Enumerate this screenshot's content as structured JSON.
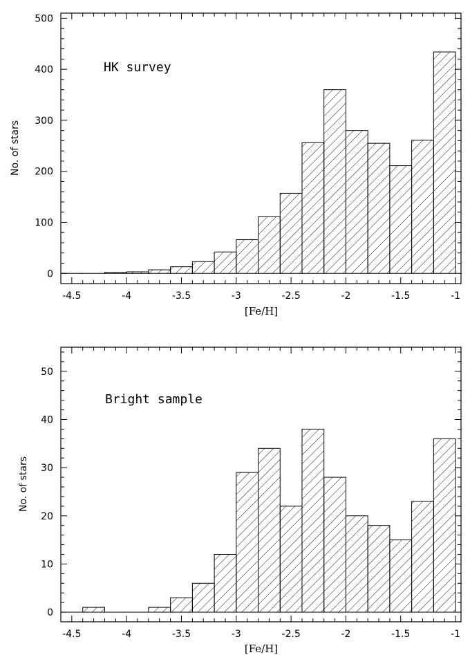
{
  "chart_data": [
    {
      "type": "bar",
      "annotation": "HK survey",
      "xlabel": "[Fe/H]",
      "ylabel": "No. of stars",
      "xlim": [
        -4.6,
        -0.95
      ],
      "ylim": [
        -20,
        510
      ],
      "xticks": [
        -4.5,
        -4,
        -3.5,
        -3,
        -2.5,
        -2,
        -1.5,
        -1
      ],
      "xtick_labels": [
        "-4.5",
        "-4",
        "-3.5",
        "-3",
        "-2.5",
        "-2",
        "-1.5",
        "-1"
      ],
      "yticks": [
        0,
        100,
        200,
        300,
        400,
        500
      ],
      "ytick_labels": [
        "0",
        "100",
        "200",
        "300",
        "400",
        "500"
      ],
      "hatch": "diagonal",
      "bins": [
        {
          "x0": -4.6,
          "x1": -4.4,
          "value": 0
        },
        {
          "x0": -4.4,
          "x1": -4.2,
          "value": 0
        },
        {
          "x0": -4.2,
          "x1": -4.0,
          "value": 2
        },
        {
          "x0": -4.0,
          "x1": -3.8,
          "value": 3
        },
        {
          "x0": -3.8,
          "x1": -3.6,
          "value": 7
        },
        {
          "x0": -3.6,
          "x1": -3.4,
          "value": 13
        },
        {
          "x0": -3.4,
          "x1": -3.2,
          "value": 23
        },
        {
          "x0": -3.2,
          "x1": -3.0,
          "value": 42
        },
        {
          "x0": -3.0,
          "x1": -2.8,
          "value": 66
        },
        {
          "x0": -2.8,
          "x1": -2.6,
          "value": 111
        },
        {
          "x0": -2.6,
          "x1": -2.4,
          "value": 157
        },
        {
          "x0": -2.4,
          "x1": -2.2,
          "value": 256
        },
        {
          "x0": -2.2,
          "x1": -2.0,
          "value": 360
        },
        {
          "x0": -2.0,
          "x1": -1.8,
          "value": 280
        },
        {
          "x0": -1.8,
          "x1": -1.6,
          "value": 255
        },
        {
          "x0": -1.6,
          "x1": -1.4,
          "value": 211
        },
        {
          "x0": -1.4,
          "x1": -1.2,
          "value": 261
        },
        {
          "x0": -1.2,
          "x1": -1.0,
          "value": 434
        }
      ]
    },
    {
      "type": "bar",
      "annotation": "Bright sample",
      "xlabel": "[Fe/H]",
      "ylabel": "No. of stars",
      "xlim": [
        -4.6,
        -0.95
      ],
      "ylim": [
        -2,
        55
      ],
      "xticks": [
        -4.5,
        -4,
        -3.5,
        -3,
        -2.5,
        -2,
        -1.5,
        -1
      ],
      "xtick_labels": [
        "-4.5",
        "-4",
        "-3.5",
        "-3",
        "-2.5",
        "-2",
        "-1.5",
        "-1"
      ],
      "yticks": [
        0,
        10,
        20,
        30,
        40,
        50
      ],
      "ytick_labels": [
        "0",
        "10",
        "20",
        "30",
        "40",
        "50"
      ],
      "hatch": "diagonal",
      "bins": [
        {
          "x0": -4.6,
          "x1": -4.4,
          "value": 0
        },
        {
          "x0": -4.4,
          "x1": -4.2,
          "value": 1
        },
        {
          "x0": -4.2,
          "x1": -4.0,
          "value": 0
        },
        {
          "x0": -4.0,
          "x1": -3.8,
          "value": 0
        },
        {
          "x0": -3.8,
          "x1": -3.6,
          "value": 1
        },
        {
          "x0": -3.6,
          "x1": -3.4,
          "value": 3
        },
        {
          "x0": -3.4,
          "x1": -3.2,
          "value": 6
        },
        {
          "x0": -3.2,
          "x1": -3.0,
          "value": 12
        },
        {
          "x0": -3.0,
          "x1": -2.8,
          "value": 29
        },
        {
          "x0": -2.8,
          "x1": -2.6,
          "value": 34
        },
        {
          "x0": -2.6,
          "x1": -2.4,
          "value": 22
        },
        {
          "x0": -2.4,
          "x1": -2.2,
          "value": 38
        },
        {
          "x0": -2.2,
          "x1": -2.0,
          "value": 28
        },
        {
          "x0": -2.0,
          "x1": -1.8,
          "value": 20
        },
        {
          "x0": -1.8,
          "x1": -1.6,
          "value": 18
        },
        {
          "x0": -1.6,
          "x1": -1.4,
          "value": 15
        },
        {
          "x0": -1.4,
          "x1": -1.2,
          "value": 23
        },
        {
          "x0": -1.2,
          "x1": -1.0,
          "value": 36
        }
      ]
    }
  ]
}
